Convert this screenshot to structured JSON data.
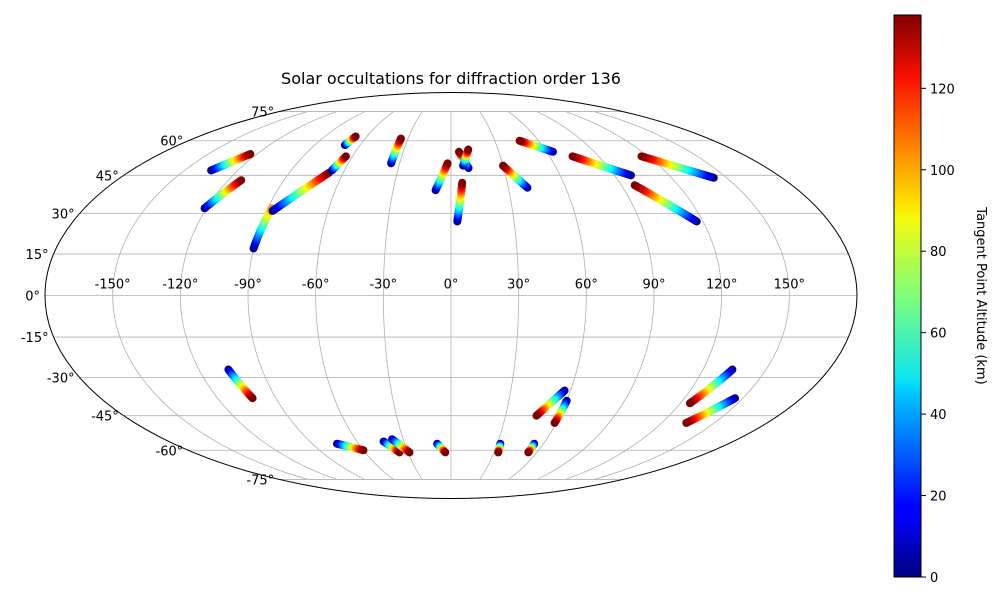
{
  "chart_data": {
    "type": "scatter",
    "projection": "mollweide",
    "title": "Solar occultations for diffraction order 136",
    "grid": true,
    "longitude_ticks": [
      -150,
      -120,
      -90,
      -60,
      -30,
      0,
      30,
      60,
      90,
      120,
      150
    ],
    "longitude_tick_labels": [
      "-150°",
      "-120°",
      "-90°",
      "-60°",
      "-30°",
      "0°",
      "30°",
      "60°",
      "90°",
      "120°",
      "150°"
    ],
    "latitude_ticks": [
      -75,
      -60,
      -45,
      -30,
      -15,
      0,
      15,
      30,
      45,
      60,
      75
    ],
    "latitude_tick_labels": [
      "-75°",
      "-60°",
      "-45°",
      "-30°",
      "-15°",
      "0°",
      "15°",
      "30°",
      "45°",
      "60°",
      "75°"
    ],
    "colorbar": {
      "label": "Tangent Point Altitude (km)",
      "range": [
        0,
        138
      ],
      "ticks": [
        0,
        20,
        40,
        60,
        80,
        100,
        120
      ],
      "tick_labels": [
        "0",
        "20",
        "40",
        "60",
        "80",
        "100",
        "120"
      ],
      "colormap": "jet",
      "placement": "right"
    },
    "occultation_tracks": [
      {
        "start": [
          -135,
          47
        ],
        "end": [
          -124,
          54
        ],
        "alt_start": 0,
        "alt_end": 138
      },
      {
        "start": [
          -121,
          32
        ],
        "end": [
          -113,
          43
        ],
        "alt_start": 0,
        "alt_end": 138
      },
      {
        "start": [
          -90,
          17
        ],
        "end": [
          -88,
          32
        ],
        "alt_start": 0,
        "alt_end": 100
      },
      {
        "start": [
          -87,
          31
        ],
        "end": [
          -68,
          46
        ],
        "alt_start": 0,
        "alt_end": 138
      },
      {
        "start": [
          -70,
          58
        ],
        "end": [
          -68,
          62
        ],
        "alt_start": 0,
        "alt_end": 138
      },
      {
        "start": [
          -67,
          47
        ],
        "end": [
          -64,
          53
        ],
        "alt_start": 0,
        "alt_end": 138
      },
      {
        "start": [
          -35,
          50
        ],
        "end": [
          -35,
          61
        ],
        "alt_start": 0,
        "alt_end": 138
      },
      {
        "start": [
          -8,
          39
        ],
        "end": [
          -2,
          50
        ],
        "alt_start": 0,
        "alt_end": 138
      },
      {
        "start": [
          3,
          27
        ],
        "end": [
          6,
          42
        ],
        "alt_start": 0,
        "alt_end": 138
      },
      {
        "start": [
          10,
          48
        ],
        "end": [
          5,
          55
        ],
        "alt_start": 0,
        "alt_end": 138
      },
      {
        "start": [
          7,
          49
        ],
        "end": [
          11,
          56
        ],
        "alt_start": 0,
        "alt_end": 138
      },
      {
        "start": [
          40,
          40
        ],
        "end": [
          30,
          49
        ],
        "alt_start": 0,
        "alt_end": 138
      },
      {
        "start": [
          64,
          55
        ],
        "end": [
          47,
          60
        ],
        "alt_start": 0,
        "alt_end": 138
      },
      {
        "start": [
          99,
          45
        ],
        "end": [
          74,
          53
        ],
        "alt_start": 0,
        "alt_end": 138
      },
      {
        "start": [
          117,
          27
        ],
        "end": [
          97,
          41
        ],
        "alt_start": 0,
        "alt_end": 138
      },
      {
        "start": [
          143,
          44
        ],
        "end": [
          116,
          53
        ],
        "alt_start": 0,
        "alt_end": 138
      },
      {
        "start": [
          -106,
          -27
        ],
        "end": [
          -102,
          -38
        ],
        "alt_start": 0,
        "alt_end": 138
      },
      {
        "start": [
          -74,
          -57
        ],
        "end": [
          -60,
          -60
        ],
        "alt_start": 0,
        "alt_end": 138
      },
      {
        "start": [
          -43,
          -56
        ],
        "end": [
          -36,
          -61
        ],
        "alt_start": 0,
        "alt_end": 138
      },
      {
        "start": [
          -37,
          -55
        ],
        "end": [
          -29,
          -61
        ],
        "alt_start": 0,
        "alt_end": 138
      },
      {
        "start": [
          -9,
          -57
        ],
        "end": [
          -4,
          -61
        ],
        "alt_start": 0,
        "alt_end": 138
      },
      {
        "start": [
          32,
          -57
        ],
        "end": [
          33,
          -61
        ],
        "alt_start": 0,
        "alt_end": 138
      },
      {
        "start": [
          54,
          -57
        ],
        "end": [
          54,
          -61
        ],
        "alt_start": 0,
        "alt_end": 138
      },
      {
        "start": [
          57,
          -35
        ],
        "end": [
          47,
          -45
        ],
        "alt_start": 0,
        "alt_end": 138
      },
      {
        "start": [
          60,
          -39
        ],
        "end": [
          59,
          -48
        ],
        "alt_start": 0,
        "alt_end": 138
      },
      {
        "start": [
          134,
          -27
        ],
        "end": [
          125,
          -40
        ],
        "alt_start": 0,
        "alt_end": 138
      },
      {
        "start": [
          146,
          -38
        ],
        "end": [
          134,
          -48
        ],
        "alt_start": 0,
        "alt_end": 138
      }
    ]
  }
}
